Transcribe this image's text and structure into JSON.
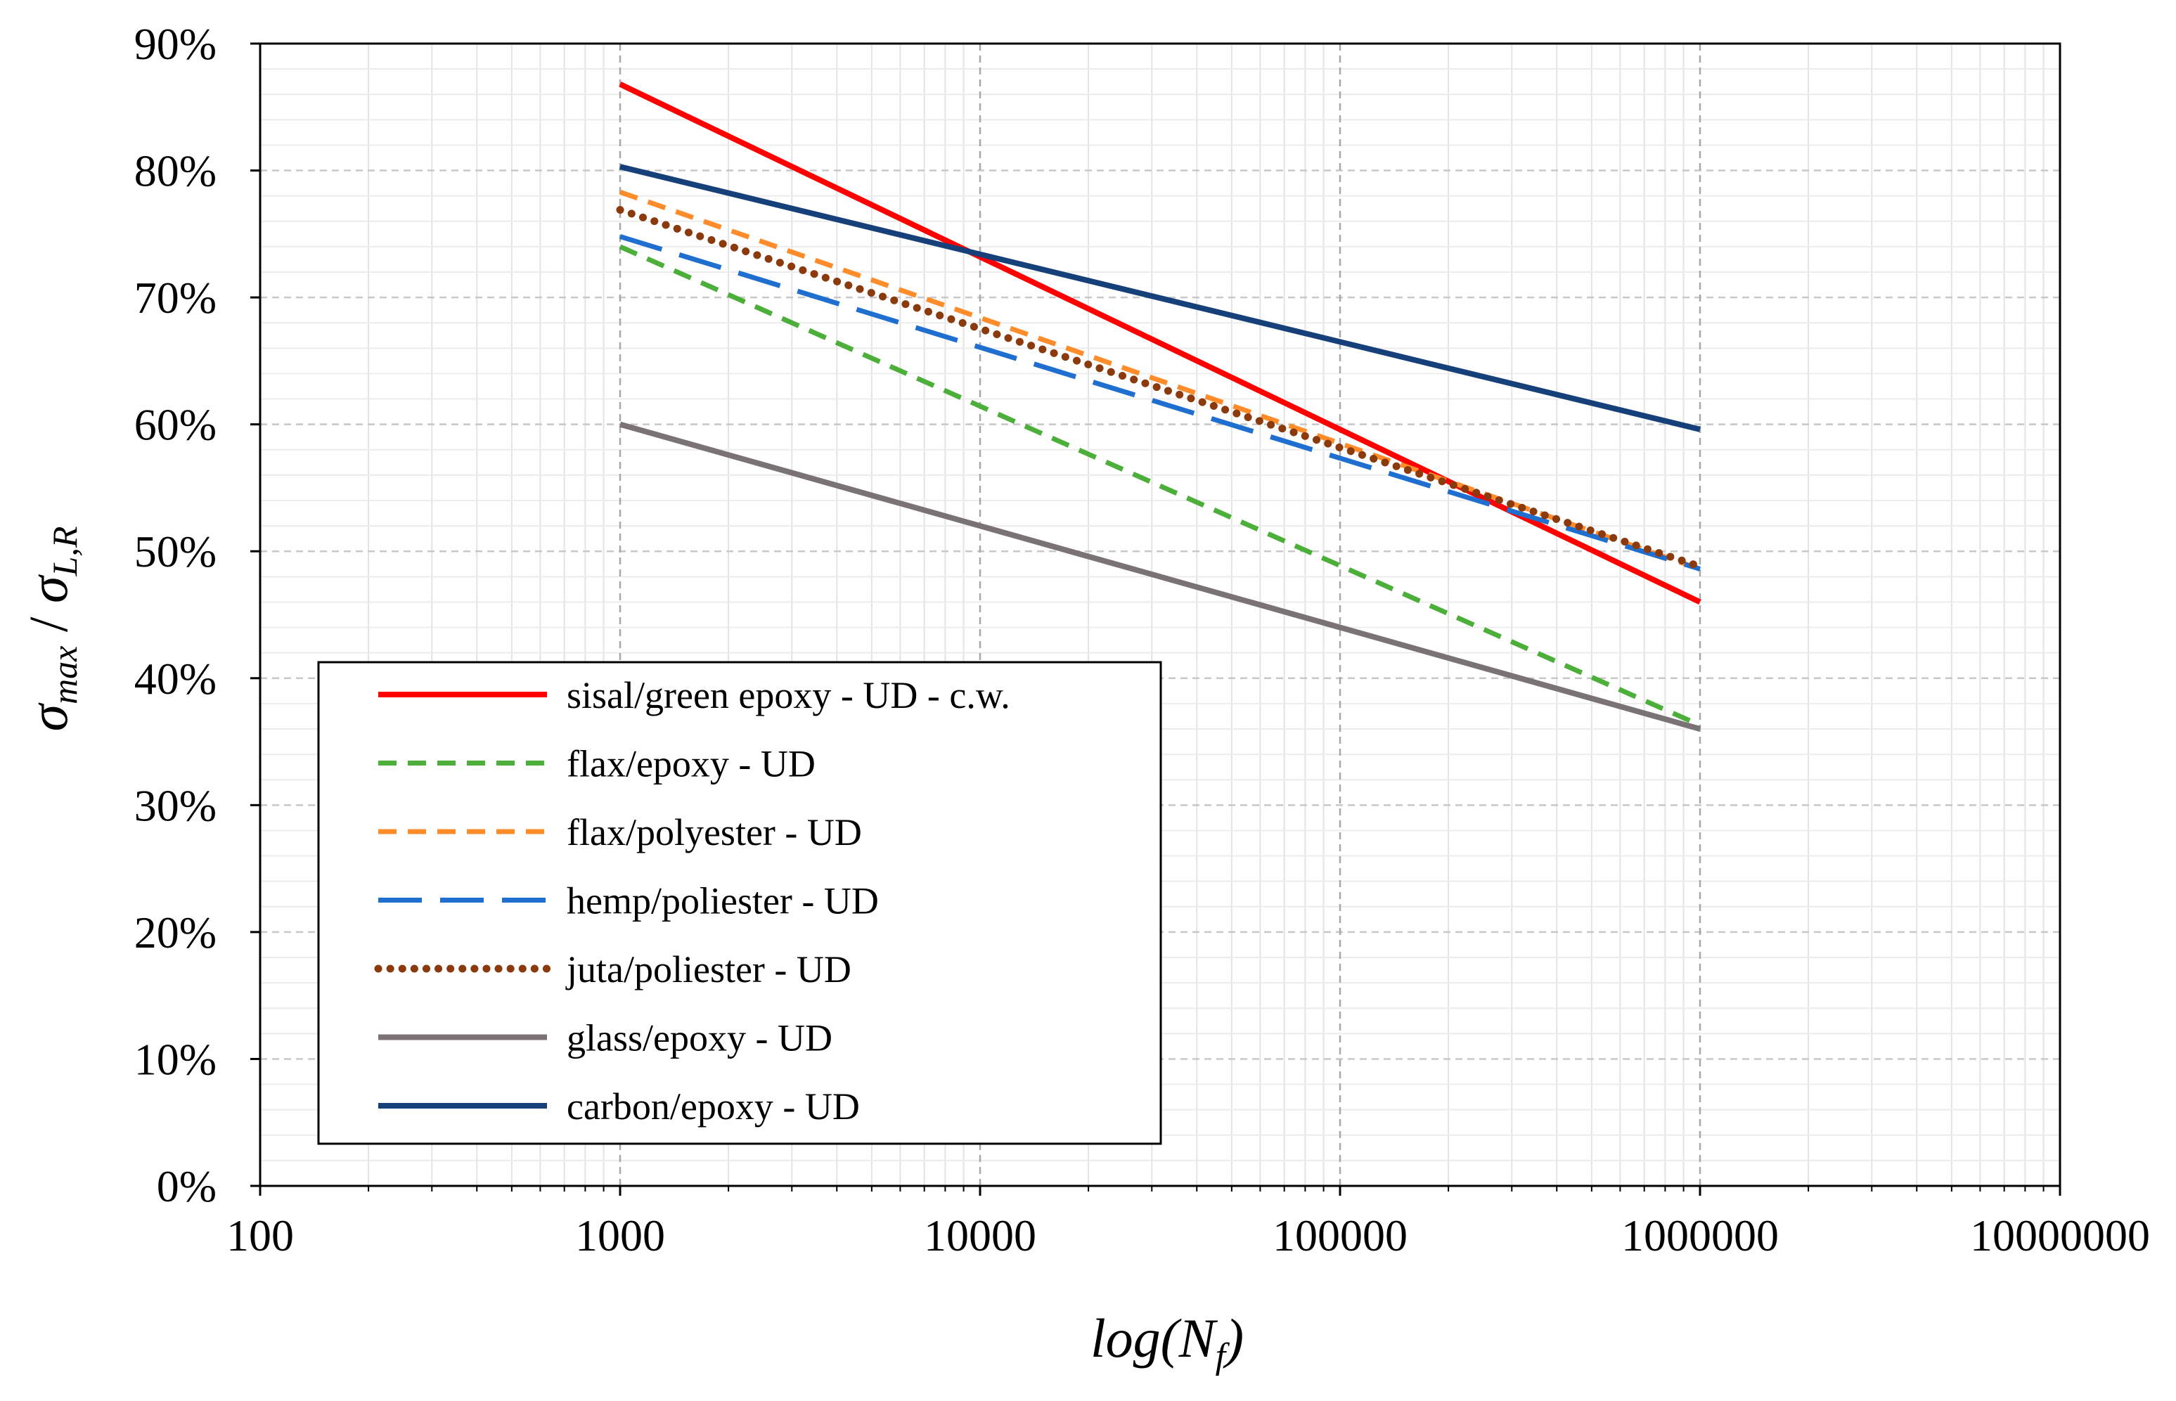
{
  "chart_data": {
    "type": "line",
    "x_scale": "log",
    "xlim": [
      100,
      10000000
    ],
    "ylim": [
      0,
      90
    ],
    "y_unit": "%",
    "x_ticks": [
      "100",
      "1000",
      "10000",
      "100000",
      "1000000",
      "10000000"
    ],
    "x_tick_values": [
      100,
      1000,
      10000,
      100000,
      1000000,
      10000000
    ],
    "y_ticks": [
      "0%",
      "10%",
      "20%",
      "30%",
      "40%",
      "50%",
      "60%",
      "70%",
      "80%",
      "90%"
    ],
    "y_tick_values": [
      0,
      10,
      20,
      30,
      40,
      50,
      60,
      70,
      80,
      90
    ],
    "xlabel": {
      "main": "log(N",
      "sub": "f",
      "close": ")"
    },
    "ylabel": {
      "num": "σ",
      "num_sub": "max",
      "sep": " / ",
      "den": "σ",
      "den_sub": "L,R"
    },
    "grid": {
      "major": true,
      "minor": true,
      "major_vertical_dashed": true
    },
    "legend_position": "bottom-left",
    "series": [
      {
        "name": "sisal/green epoxy - UD - c.w.",
        "color": "#ff0000",
        "style": "solid",
        "x": [
          1000,
          1000000
        ],
        "y": [
          86.8,
          46.0
        ]
      },
      {
        "name": "flax/epoxy - UD",
        "color": "#4caf3a",
        "style": "dash",
        "x": [
          1000,
          1000000
        ],
        "y": [
          74.0,
          36.3
        ]
      },
      {
        "name": "flax/polyester - UD",
        "color": "#ff8c2a",
        "style": "dash",
        "x": [
          1000,
          1000000
        ],
        "y": [
          78.3,
          48.6
        ]
      },
      {
        "name": "hemp/poliester - UD",
        "color": "#1f6fd1",
        "style": "longdash",
        "x": [
          1000,
          1000000
        ],
        "y": [
          74.8,
          48.6
        ]
      },
      {
        "name": "juta/poliester - UD",
        "color": "#8b3a0e",
        "style": "dot",
        "x": [
          1000,
          1000000
        ],
        "y": [
          76.9,
          48.8
        ]
      },
      {
        "name": "glass/epoxy - UD",
        "color": "#7a7275",
        "style": "solid",
        "x": [
          1000,
          1000000
        ],
        "y": [
          60.0,
          36.0
        ]
      },
      {
        "name": "carbon/epoxy - UD",
        "color": "#16407a",
        "style": "solid",
        "x": [
          1000,
          1000000
        ],
        "y": [
          80.3,
          59.6
        ]
      }
    ]
  }
}
